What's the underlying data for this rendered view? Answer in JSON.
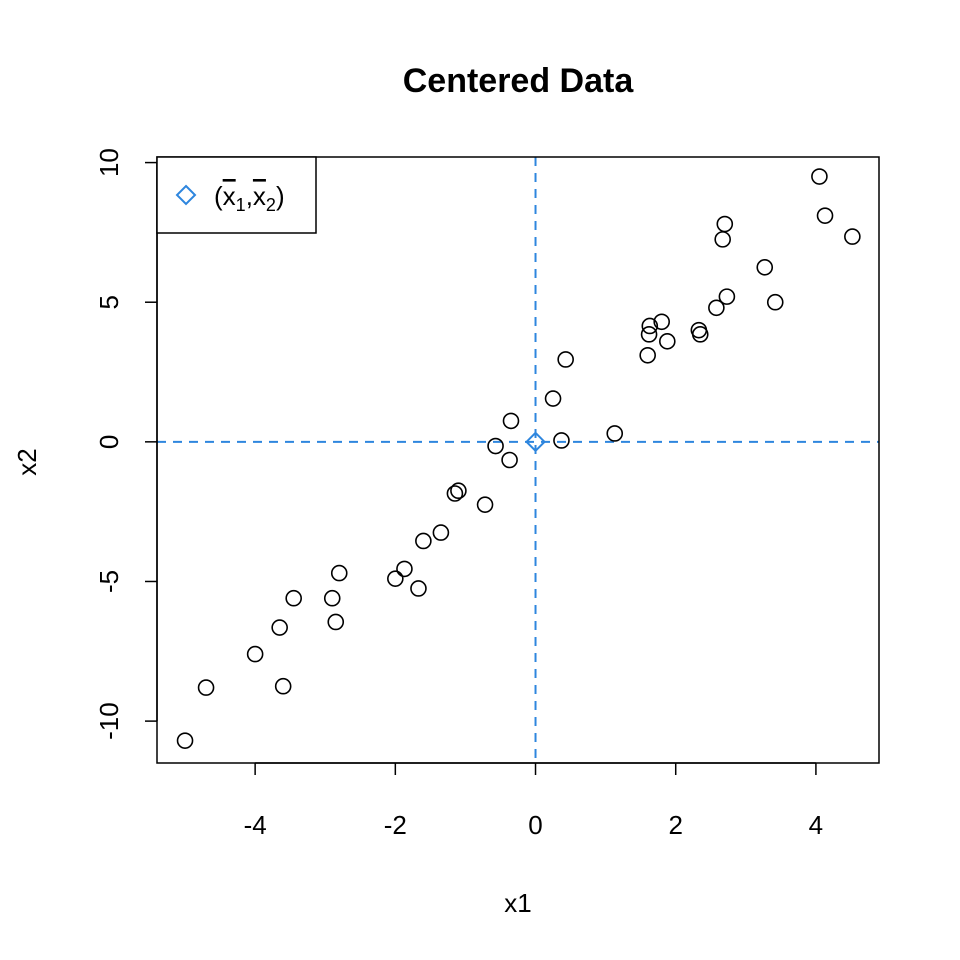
{
  "chart_data": {
    "type": "scatter",
    "title": "Centered Data",
    "xlabel": "x1",
    "ylabel": "x2",
    "xlim": [
      -5.4,
      4.9
    ],
    "ylim": [
      -11.5,
      10.2
    ],
    "xticks": [
      -4,
      -2,
      0,
      2,
      4
    ],
    "yticks": [
      -10,
      -5,
      0,
      5,
      10
    ],
    "grid": false,
    "legend": {
      "position": "top-left",
      "entries": [
        {
          "label_parts": [
            "(",
            "x",
            "1",
            ",",
            "x",
            "2",
            ")"
          ],
          "marker": "diamond",
          "color": "#2E86DE"
        }
      ]
    },
    "reference_lines": {
      "x": 0,
      "y": 0,
      "style": "dashed",
      "color": "#2E86DE"
    },
    "center_point": {
      "x": 0,
      "y": 0,
      "marker": "diamond",
      "color": "#2E86DE"
    },
    "series": [
      {
        "marker": "open-circle",
        "color": "#000000",
        "points": [
          [
            -5.0,
            -10.7
          ],
          [
            -4.7,
            -8.8
          ],
          [
            -4.0,
            -7.6
          ],
          [
            -3.65,
            -6.65
          ],
          [
            -3.6,
            -8.75
          ],
          [
            -3.45,
            -5.6
          ],
          [
            -2.9,
            -5.6
          ],
          [
            -2.85,
            -6.45
          ],
          [
            -2.8,
            -4.7
          ],
          [
            -2.0,
            -4.9
          ],
          [
            -1.87,
            -4.55
          ],
          [
            -1.67,
            -5.25
          ],
          [
            -1.6,
            -3.55
          ],
          [
            -1.35,
            -3.25
          ],
          [
            -1.15,
            -1.85
          ],
          [
            -1.1,
            -1.75
          ],
          [
            -0.72,
            -2.25
          ],
          [
            -0.57,
            -0.15
          ],
          [
            -0.37,
            -0.65
          ],
          [
            -0.35,
            0.75
          ],
          [
            0.25,
            1.55
          ],
          [
            0.37,
            0.05
          ],
          [
            0.43,
            2.95
          ],
          [
            1.13,
            0.3
          ],
          [
            1.6,
            3.1
          ],
          [
            1.62,
            3.85
          ],
          [
            1.63,
            4.15
          ],
          [
            1.8,
            4.3
          ],
          [
            1.88,
            3.6
          ],
          [
            2.33,
            4.0
          ],
          [
            2.35,
            3.85
          ],
          [
            2.58,
            4.8
          ],
          [
            2.67,
            7.25
          ],
          [
            2.7,
            7.8
          ],
          [
            2.73,
            5.2
          ],
          [
            3.27,
            6.25
          ],
          [
            3.42,
            5.0
          ],
          [
            4.05,
            9.5
          ],
          [
            4.13,
            8.1
          ],
          [
            4.52,
            7.35
          ]
        ]
      }
    ]
  }
}
